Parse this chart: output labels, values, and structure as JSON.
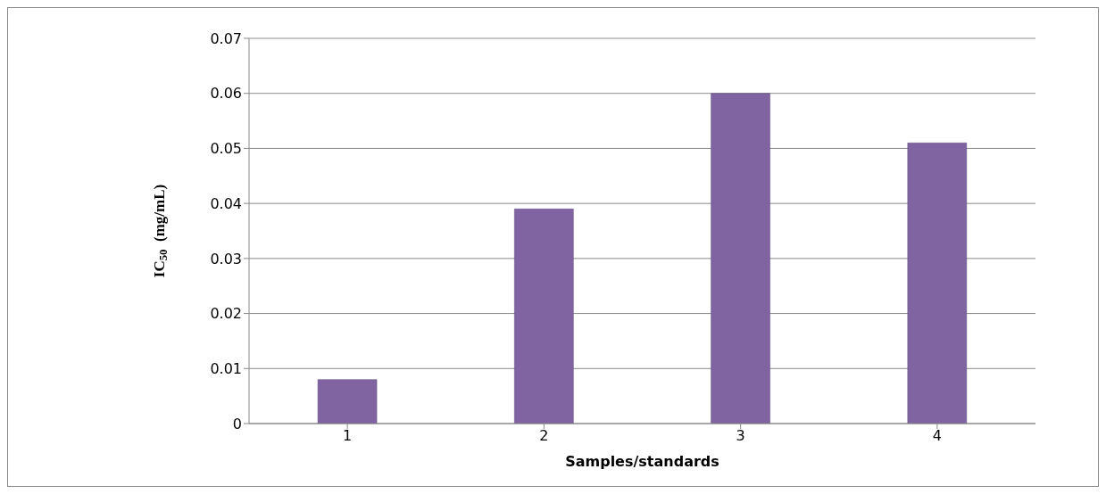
{
  "chart_data": {
    "type": "bar",
    "xlabel": "Samples/standards",
    "ylabel": "IC$_{50}$  (mg/mL)",
    "categories": [
      "1",
      "2",
      "3",
      "4"
    ],
    "values": [
      0.008,
      0.039,
      0.06,
      0.051
    ],
    "color": "#8064a2",
    "ylim": [
      0,
      0.07
    ],
    "yticks": [
      0,
      0.01,
      0.02,
      0.03,
      0.04,
      0.05,
      0.06,
      0.07
    ],
    "grid": "y"
  }
}
